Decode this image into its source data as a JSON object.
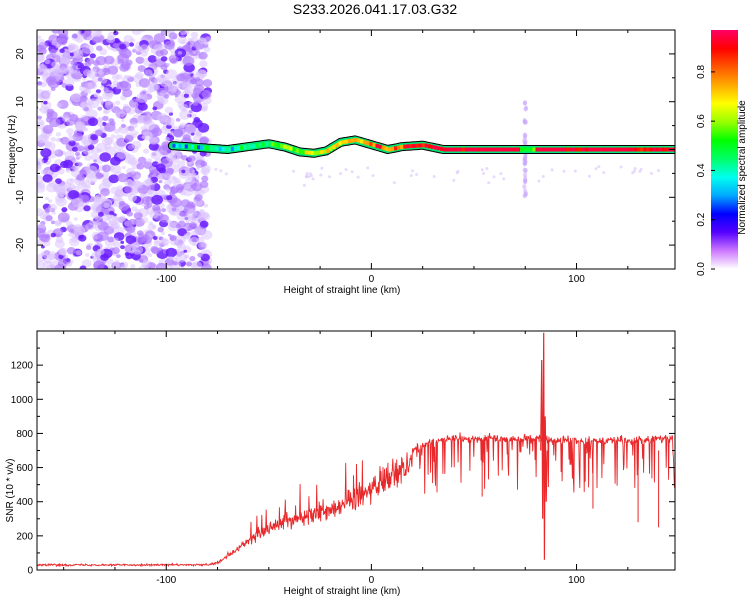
{
  "title": "S233.2026.041.17.03.G32",
  "chart_data": [
    {
      "type": "heatmap",
      "name": "spectrogram",
      "xlabel": "Height of straight line (km)",
      "ylabel": "Frequency (Hz)",
      "xlim": [
        -163,
        148
      ],
      "ylim": [
        -25,
        25
      ],
      "xticks": [
        -100,
        0,
        100
      ],
      "yticks": [
        -20,
        -10,
        0,
        10,
        20
      ],
      "noise_region_x": [
        -163,
        -80
      ],
      "ridge_start_x": -97,
      "ridge_trace": [
        {
          "x": -97,
          "y": 0.8
        },
        {
          "x": -90,
          "y": 0.6
        },
        {
          "x": -80,
          "y": 0.3
        },
        {
          "x": -70,
          "y": 0.0
        },
        {
          "x": -60,
          "y": 0.6
        },
        {
          "x": -50,
          "y": 1.2
        },
        {
          "x": -42,
          "y": 0.5
        },
        {
          "x": -35,
          "y": -0.5
        },
        {
          "x": -28,
          "y": -0.8
        },
        {
          "x": -22,
          "y": -0.3
        },
        {
          "x": -15,
          "y": 1.5
        },
        {
          "x": -8,
          "y": 2.0
        },
        {
          "x": 0,
          "y": 1.0
        },
        {
          "x": 8,
          "y": 0.0
        },
        {
          "x": 15,
          "y": 0.6
        },
        {
          "x": 25,
          "y": 0.9
        },
        {
          "x": 35,
          "y": 0.0
        },
        {
          "x": 80,
          "y": 0.0
        },
        {
          "x": 148,
          "y": 0.0
        }
      ],
      "spike": {
        "x": 75,
        "y_range": [
          -10,
          10
        ]
      },
      "colorbar": {
        "label": "Normalized spectral amplitude",
        "range": [
          0.0,
          0.97
        ],
        "ticks": [
          0.0,
          0.2,
          0.4,
          0.6,
          0.8
        ],
        "colors": [
          "#ffffff",
          "#cc77ff",
          "#5500ff",
          "#0000ff",
          "#00aaff",
          "#00ffee",
          "#00ff66",
          "#00ff00",
          "#99ff00",
          "#ffff00",
          "#ffaa00",
          "#ff5500",
          "#ff0000",
          "#ff0066"
        ]
      }
    },
    {
      "type": "line",
      "name": "snr",
      "xlabel": "Height of straight line (km)",
      "ylabel": "SNR (10 * v/v)",
      "xlim": [
        -163,
        148
      ],
      "ylim": [
        0,
        1400
      ],
      "xticks": [
        -100,
        0,
        100
      ],
      "yticks": [
        0,
        200,
        400,
        600,
        800,
        1000,
        1200
      ],
      "color": "#e8282a",
      "series": [
        {
          "name": "SNR envelope",
          "x": [
            -163,
            -80,
            -75,
            -70,
            -60,
            -50,
            -40,
            -30,
            -20,
            -10,
            0,
            10,
            20,
            30,
            40,
            50,
            60,
            70,
            80,
            90,
            100,
            110,
            120,
            130,
            140,
            148
          ],
          "values": [
            30,
            30,
            40,
            80,
            170,
            240,
            290,
            320,
            360,
            410,
            470,
            560,
            630,
            690,
            700,
            700,
            700,
            700,
            700,
            690,
            690,
            690,
            690,
            690,
            700,
            700
          ]
        }
      ],
      "spike": {
        "x": 84,
        "peak": 1390,
        "secondary_peak": 1230,
        "minimum": 60
      },
      "notable_dips": [
        {
          "x": 54,
          "value": 430
        },
        {
          "x": 108,
          "value": 360
        },
        {
          "x": 130,
          "value": 280
        },
        {
          "x": 140,
          "value": 250
        }
      ]
    }
  ]
}
